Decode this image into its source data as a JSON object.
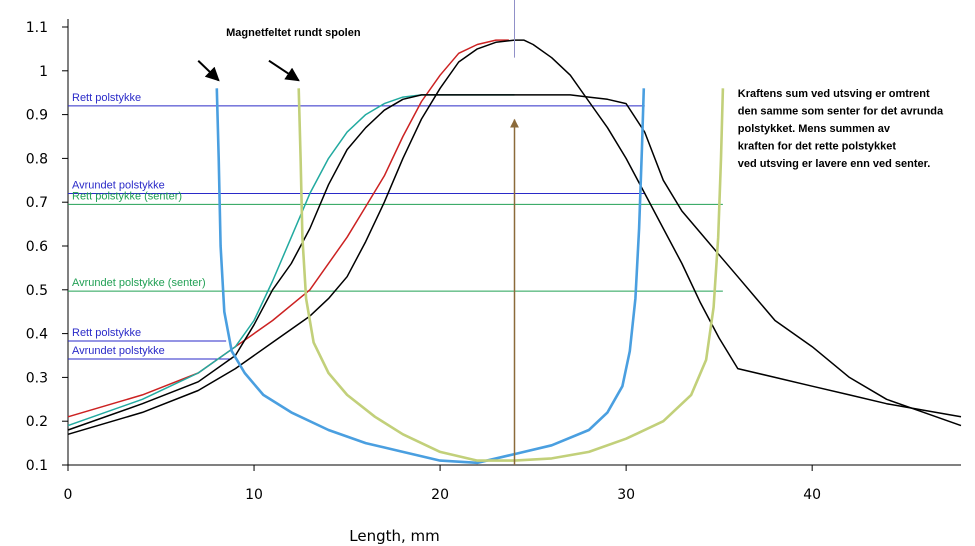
{
  "chart_data": {
    "type": "line",
    "title": "",
    "xlabel": "Length, mm",
    "ylabel": "",
    "xlim": [
      0,
      48
    ],
    "ylim": [
      0.1,
      1.1
    ],
    "x_ticks": [
      0,
      10,
      20,
      30,
      40
    ],
    "y_ticks": [
      0.1,
      0.2,
      0.3,
      0.4,
      0.5,
      0.6,
      0.7,
      0.8,
      0.9,
      1,
      1.1
    ],
    "x_tick_labels": [
      "0",
      "10",
      "20",
      "30",
      "40"
    ],
    "y_tick_labels": [
      "0.1",
      "0.2",
      "0.3",
      "0.4",
      "0.5",
      "0.6",
      "0.7",
      "0.8",
      "0.9",
      "1",
      "1.1"
    ],
    "grid": false,
    "series": [
      {
        "color": "#cc2222",
        "x": [
          0,
          4,
          7,
          9,
          11,
          13,
          15,
          16,
          17,
          18,
          19,
          20,
          21,
          22,
          23,
          23.7
        ],
        "y": [
          0.21,
          0.26,
          0.31,
          0.37,
          0.43,
          0.5,
          0.62,
          0.69,
          0.76,
          0.85,
          0.93,
          0.99,
          1.04,
          1.06,
          1.07,
          1.07
        ]
      },
      {
        "color": "#22aaa0",
        "x": [
          0,
          4,
          7,
          9,
          10,
          11,
          12,
          13,
          14,
          15,
          16,
          17,
          18,
          19,
          21,
          23,
          24
        ],
        "y": [
          0.19,
          0.25,
          0.31,
          0.37,
          0.43,
          0.52,
          0.62,
          0.72,
          0.8,
          0.86,
          0.9,
          0.925,
          0.94,
          0.945,
          0.945,
          0.945,
          0.945
        ]
      },
      {
        "color": "#000000",
        "x": [
          0,
          4,
          7,
          9,
          10,
          11,
          12,
          13,
          14,
          15,
          16,
          17,
          18,
          19,
          20,
          21,
          22,
          23,
          24,
          25,
          26,
          27,
          28,
          29,
          30,
          31,
          32,
          33,
          34,
          35,
          36,
          37,
          38,
          40,
          42,
          44,
          46,
          48
        ],
        "y": [
          0.18,
          0.24,
          0.29,
          0.35,
          0.42,
          0.5,
          0.56,
          0.64,
          0.74,
          0.82,
          0.87,
          0.91,
          0.935,
          0.945,
          0.945,
          0.945,
          0.945,
          0.945,
          0.945,
          0.945,
          0.945,
          0.945,
          0.94,
          0.935,
          0.925,
          0.86,
          0.75,
          0.68,
          0.63,
          0.58,
          0.53,
          0.48,
          0.43,
          0.37,
          0.3,
          0.25,
          0.22,
          0.19
        ]
      },
      {
        "color": "#000000",
        "x": [
          0,
          4,
          7,
          9,
          11,
          13,
          14,
          15,
          16,
          17,
          18,
          19,
          20,
          21,
          22,
          23,
          24,
          24.5,
          25,
          26,
          27,
          28,
          29,
          30,
          31,
          32,
          33,
          34,
          35,
          36,
          38,
          40,
          42,
          44,
          46,
          48
        ],
        "y": [
          0.17,
          0.22,
          0.27,
          0.32,
          0.38,
          0.44,
          0.48,
          0.53,
          0.61,
          0.7,
          0.8,
          0.89,
          0.96,
          1.02,
          1.05,
          1.065,
          1.07,
          1.07,
          1.06,
          1.03,
          0.99,
          0.93,
          0.87,
          0.8,
          0.72,
          0.64,
          0.56,
          0.47,
          0.39,
          0.32,
          0.3,
          0.28,
          0.26,
          0.24,
          0.225,
          0.21
        ]
      },
      {
        "color": "#4a9fe0",
        "x": [
          8.0,
          8.1,
          8.2,
          8.4,
          8.8,
          9.5,
          10.5,
          12,
          14,
          16,
          18,
          20,
          22,
          24,
          26,
          28,
          29,
          29.8,
          30.2,
          30.5,
          30.7,
          30.85,
          30.95
        ],
        "y": [
          0.96,
          0.8,
          0.6,
          0.45,
          0.36,
          0.31,
          0.26,
          0.22,
          0.18,
          0.15,
          0.13,
          0.11,
          0.105,
          0.125,
          0.145,
          0.18,
          0.22,
          0.28,
          0.36,
          0.48,
          0.64,
          0.82,
          0.96
        ]
      },
      {
        "color": "#c2d07a",
        "x": [
          12.4,
          12.5,
          12.6,
          12.8,
          13.2,
          14,
          15,
          16.5,
          18,
          20,
          22,
          24,
          26,
          28,
          30,
          32,
          33.5,
          34.3,
          34.7,
          34.95,
          35.1,
          35.2
        ],
        "y": [
          0.96,
          0.8,
          0.62,
          0.48,
          0.38,
          0.31,
          0.26,
          0.21,
          0.17,
          0.13,
          0.11,
          0.11,
          0.115,
          0.13,
          0.16,
          0.2,
          0.26,
          0.34,
          0.46,
          0.62,
          0.8,
          0.96
        ]
      }
    ],
    "vertical_lines": [
      {
        "x": 24,
        "color": "#8b6a3a",
        "arrow_top_y": 0.9,
        "extends_top": true
      }
    ],
    "annotations": [
      {
        "text": "Magnetfeltet rundt spolen",
        "x": 8.5,
        "y": 1.08,
        "color": "#000000",
        "bold": true
      },
      {
        "text": "Kraftens sum ved utsving er omtrent",
        "x": 36.0,
        "y": 0.94,
        "color": "#000000",
        "bold": true
      },
      {
        "text": "den samme som senter for det avrunda",
        "x": 36.0,
        "y": 0.9,
        "color": "#000000",
        "bold": true
      },
      {
        "text": "polstykket. Mens summen av",
        "x": 36.0,
        "y": 0.86,
        "color": "#000000",
        "bold": true
      },
      {
        "text": "kraften for det rette polstykket",
        "x": 36.0,
        "y": 0.82,
        "color": "#000000",
        "bold": true
      },
      {
        "text": "ved utsving er lavere enn ved senter.",
        "x": 36.0,
        "y": 0.78,
        "color": "#000000",
        "bold": true
      }
    ],
    "hlines": [
      {
        "label": "Rett polstykke",
        "y": 0.92,
        "x_end": 31.0,
        "color": "#2a2ac8"
      },
      {
        "label": "Avrundet polstykke",
        "y": 0.72,
        "x_end": 31.0,
        "color": "#2a2ac8"
      },
      {
        "label": "Rett polstykke (senter)",
        "y": 0.695,
        "x_end": 35.2,
        "color": "#22a055"
      },
      {
        "label": "Avrundet polstykke (senter)",
        "y": 0.497,
        "x_end": 35.2,
        "color": "#22a055"
      },
      {
        "label": "Rett polstykke",
        "y": 0.383,
        "x_end": 8.5,
        "color": "#2a2ac8"
      },
      {
        "label": "Avrundet polstykke",
        "y": 0.342,
        "x_end": 8.8,
        "color": "#2a2ac8"
      }
    ],
    "arrows": [
      {
        "from": [
          7.0,
          1.023
        ],
        "to": [
          8.1,
          0.978
        ]
      },
      {
        "from": [
          10.8,
          1.023
        ],
        "to": [
          12.4,
          0.978
        ]
      }
    ]
  }
}
